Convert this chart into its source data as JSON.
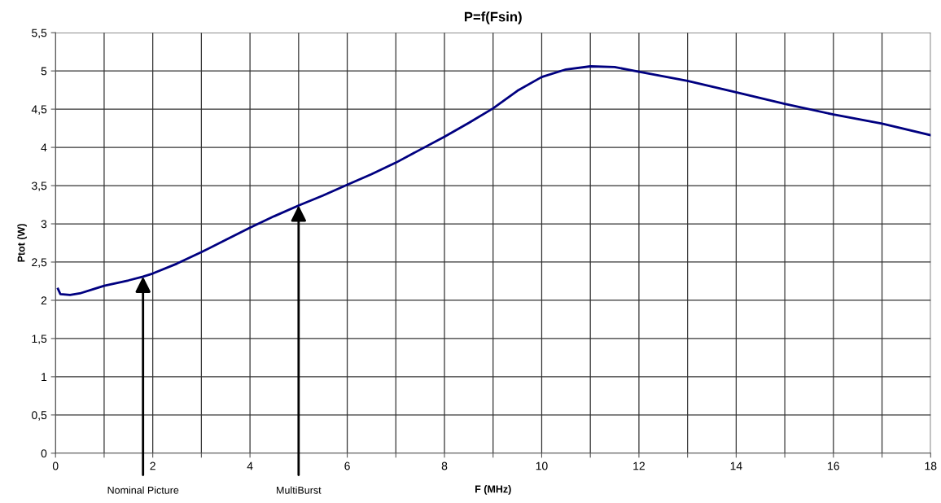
{
  "chart_data": {
    "type": "line",
    "title": "P=f(Fsin)",
    "xlabel": "F (MHz)",
    "ylabel": "Ptot (W)",
    "x": [
      0.05,
      0.1,
      0.3,
      0.5,
      0.8,
      1.0,
      1.5,
      1.8,
      2.0,
      2.5,
      3.0,
      3.5,
      4.0,
      4.5,
      5.0,
      5.5,
      6.0,
      6.5,
      7.0,
      7.5,
      8.0,
      8.5,
      9.0,
      9.5,
      10.0,
      10.5,
      11.0,
      11.5,
      12.0,
      13.0,
      14.0,
      15.0,
      16.0,
      17.0,
      18.0
    ],
    "series": [
      {
        "color": "#000080",
        "values": [
          2.15,
          2.08,
          2.07,
          2.09,
          2.15,
          2.19,
          2.26,
          2.31,
          2.35,
          2.48,
          2.63,
          2.79,
          2.95,
          3.1,
          3.24,
          3.37,
          3.51,
          3.65,
          3.8,
          3.97,
          4.14,
          4.32,
          4.51,
          4.74,
          4.92,
          5.02,
          5.06,
          5.05,
          4.99,
          4.87,
          4.72,
          4.57,
          4.43,
          4.31,
          4.16
        ]
      }
    ],
    "xlim": [
      0,
      18
    ],
    "xticks": [
      0,
      {
        "value": 1,
        "label": null
      },
      2,
      {
        "value": 3,
        "label": null
      },
      4,
      {
        "value": 5,
        "label": null
      },
      6,
      {
        "value": 7,
        "label": null
      },
      8,
      {
        "value": 9,
        "label": null
      },
      10,
      {
        "value": 11,
        "label": null
      },
      12,
      {
        "value": 13,
        "label": null
      },
      14,
      {
        "value": 15,
        "label": null
      },
      16,
      {
        "value": 17,
        "label": null
      },
      18
    ],
    "ylim": [
      0,
      5.5
    ],
    "yticks": [
      {
        "value": 0,
        "label": "0"
      },
      {
        "value": 0.5,
        "label": "0,5"
      },
      {
        "value": 1,
        "label": "1"
      },
      {
        "value": 1.5,
        "label": "1,5"
      },
      {
        "value": 2,
        "label": "2"
      },
      {
        "value": 2.5,
        "label": "2,5"
      },
      {
        "value": 3,
        "label": "3"
      },
      {
        "value": 3.5,
        "label": "3,5"
      },
      {
        "value": 4,
        "label": "4"
      },
      {
        "value": 4.5,
        "label": "4,5"
      },
      {
        "value": 5,
        "label": "5"
      },
      {
        "value": 5.5,
        "label": "5,5"
      }
    ],
    "grid": true,
    "marker": "none",
    "line_style": "solid",
    "legend": false,
    "annotations": [
      {
        "text": "Nominal Picture",
        "x": 1.8,
        "y": 2.31
      },
      {
        "text": "MultiBurst",
        "x": 5.0,
        "y": 3.24
      }
    ]
  }
}
